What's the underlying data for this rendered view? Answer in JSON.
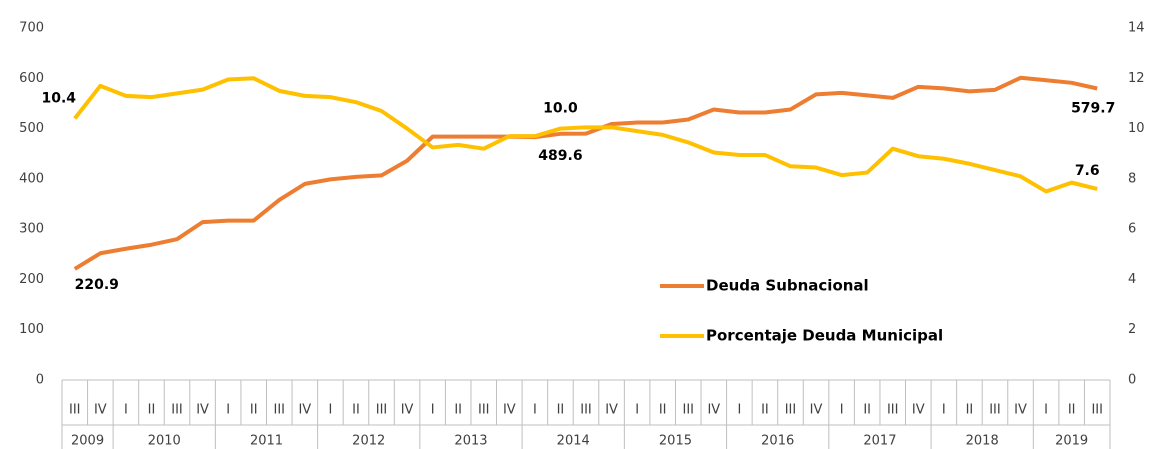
{
  "chart_data": {
    "type": "line",
    "category_groups": [
      {
        "name": "2009",
        "categories": [
          "III",
          "IV"
        ]
      },
      {
        "name": "2010",
        "categories": [
          "I",
          "II",
          "III",
          "IV"
        ]
      },
      {
        "name": "2011",
        "categories": [
          "I",
          "II",
          "III",
          "IV"
        ]
      },
      {
        "name": "2012",
        "categories": [
          "I",
          "II",
          "III",
          "IV"
        ]
      },
      {
        "name": "2013",
        "categories": [
          "I",
          "II",
          "III",
          "IV"
        ]
      },
      {
        "name": "2014",
        "categories": [
          "I",
          "II",
          "III",
          "IV"
        ]
      },
      {
        "name": "2015",
        "categories": [
          "I",
          "II",
          "III",
          "IV"
        ]
      },
      {
        "name": "2016",
        "categories": [
          "I",
          "II",
          "III",
          "IV"
        ]
      },
      {
        "name": "2017",
        "categories": [
          "I",
          "II",
          "III",
          "IV"
        ]
      },
      {
        "name": "2018",
        "categories": [
          "I",
          "II",
          "III",
          "IV"
        ]
      },
      {
        "name": "2019",
        "categories": [
          "I",
          "II",
          "III"
        ]
      }
    ],
    "series": [
      {
        "name": "Deuda Subnacional",
        "color": "#ed7d31",
        "axis": "y",
        "values": [
          220.9,
          252,
          261,
          269,
          280,
          314,
          317,
          317,
          358,
          390,
          399,
          404,
          407,
          436,
          484,
          484,
          484,
          484,
          483,
          489.6,
          490,
          509,
          512,
          512,
          518,
          538,
          532,
          532,
          538,
          568,
          571,
          566,
          561,
          583,
          580,
          574,
          577,
          601,
          596,
          591,
          579.7
        ],
        "value_labels": [
          "220.9",
          null,
          null,
          null,
          null,
          null,
          null,
          null,
          null,
          null,
          null,
          null,
          null,
          null,
          null,
          null,
          null,
          null,
          null,
          "489.6",
          null,
          null,
          null,
          null,
          null,
          null,
          null,
          null,
          null,
          null,
          null,
          null,
          null,
          null,
          null,
          null,
          null,
          null,
          null,
          null,
          "579.7"
        ]
      },
      {
        "name": "Porcentaje Deuda Municipal",
        "color": "#ffc000",
        "axis": "y2",
        "values": [
          10.4,
          11.7,
          11.3,
          11.25,
          11.4,
          11.55,
          11.95,
          12.0,
          11.5,
          11.3,
          11.25,
          11.05,
          10.7,
          10.0,
          9.25,
          9.35,
          9.2,
          9.7,
          9.7,
          10.0,
          10.05,
          10.05,
          9.9,
          9.75,
          9.45,
          9.05,
          8.95,
          8.95,
          8.5,
          8.45,
          8.15,
          8.25,
          9.2,
          8.9,
          8.8,
          8.6,
          8.35,
          8.1,
          7.5,
          7.85,
          7.6
        ],
        "value_labels": [
          "10.4",
          null,
          null,
          null,
          null,
          null,
          null,
          null,
          null,
          null,
          null,
          null,
          null,
          null,
          null,
          null,
          null,
          null,
          null,
          "10.0",
          null,
          null,
          null,
          null,
          null,
          null,
          null,
          null,
          null,
          null,
          null,
          null,
          null,
          null,
          null,
          null,
          null,
          null,
          null,
          null,
          "7.6"
        ]
      }
    ],
    "ylim": [
      0,
      700
    ],
    "yticks": [
      0,
      100,
      200,
      300,
      400,
      500,
      600,
      700
    ],
    "y2lim": [
      0,
      14
    ],
    "y2ticks": [
      0,
      2,
      4,
      6,
      8,
      10,
      12,
      14
    ],
    "grid": false,
    "legend": "right"
  }
}
